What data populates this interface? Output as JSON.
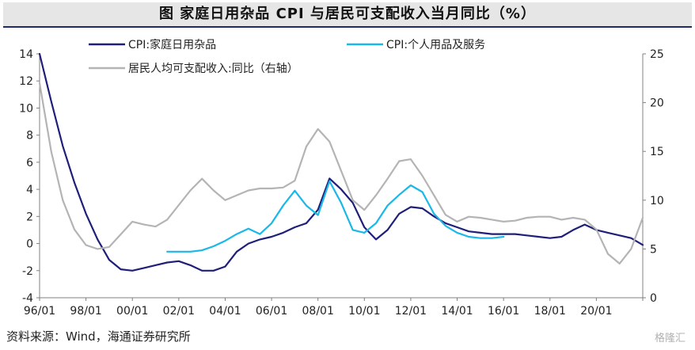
{
  "title": "图  家庭日用杂品 CPI 与居民可支配收入当月同比（%）",
  "source": "资料来源：Wind，海通证券研究所",
  "watermark": "格隆汇",
  "chart_data": {
    "type": "line",
    "x_ticks": [
      "96/01",
      "98/01",
      "00/01",
      "02/01",
      "04/01",
      "06/01",
      "08/01",
      "10/01",
      "12/01",
      "14/01",
      "16/01",
      "18/01",
      "20/01"
    ],
    "x_range": [
      1996.0,
      2022.0
    ],
    "left_axis": {
      "ylim": [
        -4,
        14
      ],
      "ticks": [
        -4,
        -2,
        0,
        2,
        4,
        6,
        8,
        10,
        12,
        14
      ]
    },
    "right_axis": {
      "ylim": [
        0,
        25
      ],
      "ticks": [
        0,
        5,
        10,
        15,
        20,
        25
      ]
    },
    "legend": [
      "CPI:家庭日用杂品",
      "CPI:个人用品及服务",
      "居民人均可支配收入:同比（右轴）"
    ],
    "series": [
      {
        "name": "CPI:家庭日用杂品",
        "axis": "left",
        "color": "#1f1f7a",
        "x": [
          1996.0,
          1996.5,
          1997.0,
          1997.5,
          1998.0,
          1998.5,
          1999.0,
          1999.5,
          2000.0,
          2000.5,
          2001.0,
          2001.5,
          2002.0,
          2002.5,
          2003.0,
          2003.5,
          2004.0,
          2004.5,
          2005.0,
          2005.5,
          2006.0,
          2006.5,
          2007.0,
          2007.5,
          2008.0,
          2008.5,
          2009.0,
          2009.5,
          2010.0,
          2010.5,
          2011.0,
          2011.5,
          2012.0,
          2012.5,
          2013.0,
          2013.5,
          2014.0,
          2014.5,
          2015.0,
          2015.5,
          2016.0,
          2016.5,
          2017.0,
          2017.5,
          2018.0,
          2018.5,
          2019.0,
          2019.5,
          2020.0,
          2020.5,
          2021.0,
          2021.5,
          2022.0
        ],
        "values": [
          14.2,
          10.5,
          7.2,
          4.5,
          2.2,
          0.3,
          -1.2,
          -1.9,
          -2.0,
          -1.8,
          -1.6,
          -1.4,
          -1.3,
          -1.6,
          -2.0,
          -2.0,
          -1.7,
          -0.6,
          0.0,
          0.3,
          0.5,
          0.8,
          1.2,
          1.5,
          2.5,
          4.8,
          4.0,
          3.0,
          1.2,
          0.3,
          1.0,
          2.2,
          2.7,
          2.6,
          2.0,
          1.5,
          1.2,
          0.9,
          0.8,
          0.7,
          0.7,
          0.7,
          0.6,
          0.5,
          0.4,
          0.5,
          1.0,
          1.4,
          1.0,
          0.8,
          0.6,
          0.4,
          -0.1
        ]
      },
      {
        "name": "CPI:个人用品及服务",
        "axis": "left",
        "color": "#1ab8e8",
        "x": [
          2001.5,
          2002.0,
          2002.5,
          2003.0,
          2003.5,
          2004.0,
          2004.5,
          2005.0,
          2005.5,
          2006.0,
          2006.5,
          2007.0,
          2007.5,
          2008.0,
          2008.5,
          2009.0,
          2009.5,
          2010.0,
          2010.5,
          2011.0,
          2011.5,
          2012.0,
          2012.5,
          2013.0,
          2013.5,
          2014.0,
          2014.5,
          2015.0,
          2015.5,
          2016.0
        ],
        "values": [
          -0.6,
          -0.6,
          -0.6,
          -0.5,
          -0.2,
          0.2,
          0.7,
          1.1,
          0.7,
          1.5,
          2.8,
          3.9,
          2.8,
          2.1,
          4.6,
          3.0,
          1.0,
          0.8,
          1.5,
          2.8,
          3.6,
          4.3,
          3.8,
          2.2,
          1.3,
          0.8,
          0.5,
          0.4,
          0.4,
          0.5
        ]
      },
      {
        "name": "居民人均可支配收入:同比（右轴）",
        "axis": "right",
        "color": "#b4b4b4",
        "x": [
          1996.0,
          1996.5,
          1997.0,
          1997.5,
          1998.0,
          1998.5,
          1999.0,
          1999.5,
          2000.0,
          2000.5,
          2001.0,
          2001.5,
          2002.0,
          2002.5,
          2003.0,
          2003.5,
          2004.0,
          2004.5,
          2005.0,
          2005.5,
          2006.0,
          2006.5,
          2007.0,
          2007.5,
          2008.0,
          2008.5,
          2009.0,
          2009.5,
          2010.0,
          2010.5,
          2011.0,
          2011.5,
          2012.0,
          2012.5,
          2013.0,
          2013.5,
          2014.0,
          2014.5,
          2015.0,
          2015.5,
          2016.0,
          2016.5,
          2017.0,
          2017.5,
          2018.0,
          2018.5,
          2019.0,
          2019.5,
          2020.0,
          2020.5,
          2021.0,
          2021.5,
          2022.0
        ],
        "values": [
          22,
          15,
          10,
          7,
          5.4,
          5.0,
          5.2,
          6.5,
          7.8,
          7.5,
          7.3,
          8.0,
          9.5,
          11.0,
          12.2,
          11.0,
          10.0,
          10.5,
          11.0,
          11.2,
          11.2,
          11.3,
          12.0,
          15.5,
          17.3,
          16.0,
          13.0,
          10.0,
          9.0,
          10.5,
          12.2,
          14.0,
          14.2,
          12.5,
          10.5,
          8.5,
          7.8,
          8.3,
          8.2,
          8.0,
          7.8,
          7.9,
          8.2,
          8.3,
          8.3,
          8.0,
          8.2,
          8.0,
          7.0,
          4.5,
          3.5,
          5.0,
          8.2
        ]
      }
    ]
  }
}
